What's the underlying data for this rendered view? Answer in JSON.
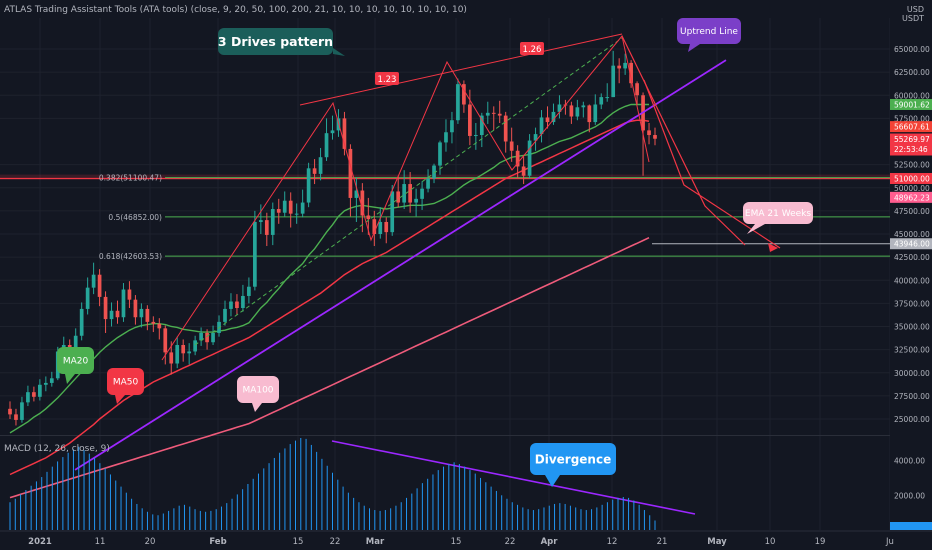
{
  "header": {
    "title": "ATLAS Trading Assistant Tools (ATA tools) (close, 9, 20, 50, 100, 200, 21, 10, 10, 10, 10, 10, 10, 10, 10)",
    "currency": "USD\nUSDT"
  },
  "macd": {
    "label": "MACD (12, 26, close, 9)",
    "ticks": [
      {
        "v": 4000,
        "label": "4000.00"
      },
      {
        "v": 2000,
        "label": "2000.00"
      }
    ],
    "histogram": [
      1600,
      1800,
      2050,
      2300,
      2550,
      2800,
      3050,
      3350,
      3650,
      3950,
      4200,
      4450,
      4650,
      4800,
      4600,
      4400,
      4150,
      3850,
      3550,
      3200,
      2850,
      2500,
      2150,
      1800,
      1500,
      1250,
      1050,
      900,
      850,
      950,
      1100,
      1250,
      1400,
      1450,
      1350,
      1200,
      1100,
      1050,
      1100,
      1200,
      1350,
      1550,
      1800,
      2050,
      2350,
      2650,
      2950,
      3250,
      3550,
      3850,
      4150,
      4450,
      4700,
      4950,
      5150,
      5300,
      5250,
      4900,
      4500,
      4100,
      3700,
      3300,
      2900,
      2500,
      2150,
      1850,
      1600,
      1400,
      1250,
      1150,
      1100,
      1150,
      1250,
      1400,
      1600,
      1850,
      2100,
      2400,
      2700,
      2950,
      3200,
      3450,
      3650,
      3800,
      3900,
      3800,
      3650,
      3450,
      3250,
      3000,
      2750,
      2500,
      2250,
      2000,
      1800,
      1600,
      1450,
      1300,
      1200,
      1150,
      1200,
      1300,
      1400,
      1500,
      1550,
      1500,
      1400,
      1300,
      1200,
      1150,
      1200,
      1300,
      1450,
      1600,
      1750,
      1850,
      1900,
      1850,
      1700,
      1450,
      1150,
      850,
      550
    ]
  },
  "chart_data": {
    "type": "candlestick",
    "x_ticks": [
      "2021",
      "11",
      "20",
      "Feb",
      "15",
      "22",
      "Mar",
      "15",
      "22",
      "Apr",
      "12",
      "21",
      "May",
      "10",
      "19",
      "Ju"
    ],
    "y_ticks": [
      "65000.00",
      "62500.00",
      "60000.00",
      "57500.00",
      "52500.00",
      "50000.00",
      "47500.00",
      "45000.00",
      "42500.00",
      "40000.00",
      "37500.00",
      "35000.00",
      "32500.00",
      "30000.00",
      "27500.00",
      "25000.00"
    ],
    "y_tick_values": [
      65000,
      62500,
      60000,
      57500,
      52500,
      50000,
      47500,
      45000,
      42500,
      40000,
      37500,
      35000,
      32500,
      30000,
      27500,
      25000
    ],
    "price_badges": [
      {
        "label": "59001.62",
        "value": 59001.62,
        "color": "#4caf50"
      },
      {
        "label": "56607.61",
        "value": 56607.61,
        "color": "#f44336"
      },
      {
        "label": "55269.97\n22:53:46",
        "value": 55269.97,
        "color": "#f23645"
      },
      {
        "label": "51000.00",
        "value": 51000,
        "color": "#f23645"
      },
      {
        "label": "48962.23",
        "value": 48962.23,
        "color": "#ff5d8f"
      },
      {
        "label": "43946.00",
        "value": 43946,
        "color": "#b2b5be"
      }
    ],
    "fib_levels": [
      {
        "label": "0.382(51100.47)",
        "value": 51100.47
      },
      {
        "label": "0.5(46852.00)",
        "value": 46852
      },
      {
        "label": "0.618(42603.53)",
        "value": 42603.53
      }
    ],
    "ratio_labels": [
      "1.23",
      "1.26"
    ],
    "annotations": {
      "three_drives": "3 Drives pattern",
      "uptrend": "Uptrend Line",
      "ema21w": "EMA 21 Weeks",
      "divergence": "Divergence",
      "ma20": "MA20",
      "ma50": "MA50",
      "ma100": "MA100"
    },
    "candles": [
      [
        26100,
        25500,
        26900,
        25000
      ],
      [
        25500,
        24900,
        26100,
        24300
      ],
      [
        24900,
        26800,
        27400,
        24600
      ],
      [
        26800,
        27900,
        28600,
        26400
      ],
      [
        27900,
        27400,
        28500,
        26900
      ],
      [
        27400,
        28700,
        29300,
        27000
      ],
      [
        28700,
        28900,
        29600,
        28000
      ],
      [
        28900,
        29400,
        30100,
        28500
      ],
      [
        29400,
        32300,
        32800,
        29200
      ],
      [
        32300,
        33000,
        33900,
        31700
      ],
      [
        33000,
        32000,
        33600,
        31400
      ],
      [
        32000,
        34000,
        34800,
        31600
      ],
      [
        34000,
        36900,
        37600,
        33500
      ],
      [
        36900,
        39200,
        40300,
        36300
      ],
      [
        39200,
        40600,
        41900,
        38500
      ],
      [
        40600,
        38200,
        41200,
        37200
      ],
      [
        38200,
        35800,
        38800,
        34300
      ],
      [
        35800,
        36700,
        37600,
        35000
      ],
      [
        36700,
        36000,
        37800,
        35300
      ],
      [
        36000,
        39000,
        39700,
        35500
      ],
      [
        39000,
        37900,
        39900,
        37000
      ],
      [
        37900,
        36000,
        38400,
        35200
      ],
      [
        36000,
        36900,
        37500,
        34900
      ],
      [
        36900,
        35500,
        37300,
        34600
      ],
      [
        35500,
        35300,
        36100,
        34400
      ],
      [
        35300,
        34800,
        35900,
        33600
      ],
      [
        34800,
        32200,
        35100,
        30900
      ],
      [
        32200,
        31000,
        33400,
        29800
      ],
      [
        31000,
        33000,
        33900,
        30500
      ],
      [
        33000,
        32100,
        33600,
        31200
      ],
      [
        32100,
        32300,
        33200,
        30900
      ],
      [
        32300,
        33500,
        34000,
        31900
      ],
      [
        33500,
        34300,
        34900,
        32900
      ],
      [
        34300,
        33300,
        34700,
        32500
      ],
      [
        33300,
        34300,
        35100,
        33000
      ],
      [
        34300,
        35500,
        36200,
        33900
      ],
      [
        35500,
        36900,
        37800,
        35100
      ],
      [
        36900,
        37700,
        38600,
        36100
      ],
      [
        37700,
        37000,
        38500,
        36300
      ],
      [
        37000,
        38300,
        39500,
        36600
      ],
      [
        38300,
        39300,
        40300,
        37500
      ],
      [
        39300,
        46300,
        47500,
        38900
      ],
      [
        46300,
        46500,
        48200,
        45000
      ],
      [
        46500,
        44900,
        47300,
        43700
      ],
      [
        44900,
        47700,
        48400,
        43800
      ],
      [
        47700,
        47300,
        48800,
        46100
      ],
      [
        47300,
        48600,
        49600,
        46900
      ],
      [
        48600,
        47200,
        49500,
        45700
      ],
      [
        47200,
        47200,
        48300,
        46100
      ],
      [
        47200,
        48400,
        49800,
        46800
      ],
      [
        48400,
        52100,
        52700,
        47900
      ],
      [
        52100,
        51500,
        53100,
        50400
      ],
      [
        51500,
        53300,
        54300,
        50800
      ],
      [
        53300,
        55900,
        57500,
        52900
      ],
      [
        55900,
        56200,
        57800,
        55200
      ],
      [
        56200,
        57500,
        58500,
        55500
      ],
      [
        57500,
        54200,
        58200,
        53500
      ],
      [
        54200,
        48900,
        54700,
        46900
      ],
      [
        48900,
        49700,
        51100,
        46300
      ],
      [
        49700,
        47000,
        50500,
        45200
      ],
      [
        47000,
        46600,
        48900,
        44900
      ],
      [
        46600,
        45000,
        47500,
        43700
      ],
      [
        45000,
        46300,
        47900,
        44500
      ],
      [
        46300,
        45200,
        46800,
        44000
      ],
      [
        45200,
        49600,
        50300,
        44800
      ],
      [
        49600,
        48400,
        51300,
        47900
      ],
      [
        48400,
        50400,
        51900,
        47700
      ],
      [
        50400,
        48400,
        51700,
        47300
      ],
      [
        48400,
        48800,
        49900,
        46900
      ],
      [
        48800,
        49900,
        50700,
        47600
      ],
      [
        49900,
        51000,
        52000,
        49500
      ],
      [
        51000,
        52400,
        52600,
        50500
      ],
      [
        52400,
        54900,
        55100,
        51400
      ],
      [
        54900,
        56000,
        57400,
        53900
      ],
      [
        56000,
        57300,
        58200,
        54800
      ],
      [
        57300,
        61200,
        61800,
        56900
      ],
      [
        61200,
        59000,
        61600,
        58100
      ],
      [
        59000,
        55600,
        60600,
        54600
      ],
      [
        55600,
        55700,
        57000,
        54100
      ],
      [
        55700,
        57800,
        58100,
        54400
      ],
      [
        57800,
        58100,
        59300,
        56900
      ],
      [
        58100,
        58000,
        58800,
        56200
      ],
      [
        58000,
        57800,
        59400,
        57000
      ],
      [
        57800,
        55000,
        58200,
        53800
      ],
      [
        55000,
        54000,
        56500,
        52800
      ],
      [
        54000,
        52300,
        54600,
        51100
      ],
      [
        52300,
        51300,
        53400,
        50400
      ],
      [
        51300,
        55100,
        55800,
        51000
      ],
      [
        55100,
        55800,
        56500,
        54000
      ],
      [
        55800,
        57600,
        58400,
        54900
      ],
      [
        57600,
        57100,
        58800,
        56400
      ],
      [
        57100,
        58200,
        59100,
        56800
      ],
      [
        58200,
        59000,
        60000,
        57500
      ],
      [
        59000,
        58900,
        59500,
        57900
      ],
      [
        58900,
        57700,
        59300,
        56900
      ],
      [
        57700,
        58700,
        59500,
        57300
      ],
      [
        58700,
        58900,
        59300,
        57600
      ],
      [
        58900,
        57100,
        59000,
        56000
      ],
      [
        57100,
        59000,
        60100,
        56800
      ],
      [
        59000,
        59800,
        60200,
        58500
      ],
      [
        59800,
        59800,
        61300,
        59300
      ],
      [
        59800,
        63200,
        64800,
        59800
      ],
      [
        63200,
        62900,
        64000,
        61300
      ],
      [
        62900,
        63500,
        64500,
        62200
      ],
      [
        63500,
        61300,
        63800,
        60800
      ],
      [
        61300,
        60000,
        61500,
        59000
      ],
      [
        60000,
        56200,
        60300,
        51300
      ],
      [
        56200,
        55700,
        57000,
        54700
      ],
      [
        55700,
        55300,
        56500,
        54600
      ]
    ],
    "ma20": [
      23500,
      23900,
      24300,
      24700,
      25200,
      25600,
      26100,
      26700,
      27300,
      28000,
      28700,
      29400,
      30100,
      30800,
      31500,
      32200,
      32800,
      33300,
      33800,
      34200,
      34600,
      34900,
      35100,
      35200,
      35300,
      35300,
      35200,
      35000,
      34900,
      34700,
      34600,
      34500,
      34400,
      34400,
      34400,
      34500,
      34600,
      34800,
      34900,
      35100,
      35400,
      36200,
      37000,
      37600,
      38400,
      39100,
      39900,
      40600,
      41200,
      41800,
      42700,
      43400,
      44300,
      45200,
      46000,
      46900,
      47500,
      47800,
      48000,
      48100,
      48000,
      47900,
      47800,
      47700,
      47800,
      47900,
      48000,
      48100,
      48100,
      48100,
      48200,
      48300,
      48600,
      48900,
      49300,
      49800,
      50300,
      50700,
      51000,
      51400,
      51800,
      52200,
      52700,
      53000,
      53300,
      53400,
      53500,
      53600,
      53800,
      54100,
      54400,
      54700,
      55000,
      55200,
      55400,
      55700,
      56000,
      56300,
      56600,
      57000,
      57600,
      58100,
      58500,
      58800,
      59000,
      59000,
      59000,
      59000
    ],
    "ma50": [
      19000,
      19300,
      19600,
      19900,
      20200,
      20500,
      20800,
      21200,
      21600,
      22000,
      22400,
      22900,
      23400,
      23900,
      24400,
      25000,
      25500,
      26000,
      26500,
      27000,
      27400,
      27800,
      28200,
      28600,
      29000,
      29300,
      29600,
      29900,
      30200,
      30500,
      30800,
      31100,
      31400,
      31700,
      32000,
      32300,
      32600,
      32900,
      33200,
      33500,
      33800,
      34200,
      34600,
      35000,
      35400,
      35800,
      36200,
      36600,
      37000,
      37400,
      37800,
      38200,
      38600,
      39100,
      39600,
      40100,
      40600,
      41000,
      41400,
      41800,
      42100,
      42400,
      42700,
      43000,
      43400,
      43800,
      44200,
      44600,
      45000,
      45400,
      45800,
      46200,
      46600,
      47000,
      47400,
      47800,
      48200,
      48600,
      49000,
      49400,
      49800,
      50200,
      50600,
      51000,
      51300,
      51600,
      51900,
      52200,
      52500,
      52800,
      53100,
      53400,
      53700,
      54000,
      54300,
      54600,
      54900,
      55200,
      55500,
      55800,
      56100,
      56400,
      56700,
      57000,
      57200,
      57300,
      57300,
      57200
    ],
    "ma100": [
      16500,
      16700,
      16900,
      17100,
      17300,
      17500,
      17700,
      17900,
      18100,
      18300,
      18500,
      18700,
      18900,
      19100,
      19300,
      19500,
      19700,
      19900,
      20100,
      20300,
      20500,
      20700,
      20900,
      21100,
      21300,
      21500,
      21700,
      21900,
      22100,
      22300,
      22500,
      22700,
      22900,
      23100,
      23300,
      23500,
      23700,
      23900,
      24100,
      24300,
      24500,
      24800,
      25100,
      25400,
      25700,
      26000,
      26300,
      26600,
      26900,
      27200,
      27500,
      27800,
      28100,
      28400,
      28700,
      29000,
      29300,
      29600,
      29900,
      30200,
      30500,
      30800,
      31100,
      31400,
      31700,
      32000,
      32300,
      32600,
      32900,
      33200,
      33500,
      33800,
      34100,
      34400,
      34700,
      35000,
      35300,
      35600,
      35900,
      36200,
      36500,
      36800,
      37100,
      37400,
      37700,
      38000,
      38300,
      38600,
      38900,
      39200,
      39500,
      39800,
      40100,
      40400,
      40700,
      41000,
      41300,
      41600,
      41900,
      42200,
      42500,
      42800,
      43100,
      43400,
      43700,
      44000,
      44300,
      44600
    ]
  }
}
